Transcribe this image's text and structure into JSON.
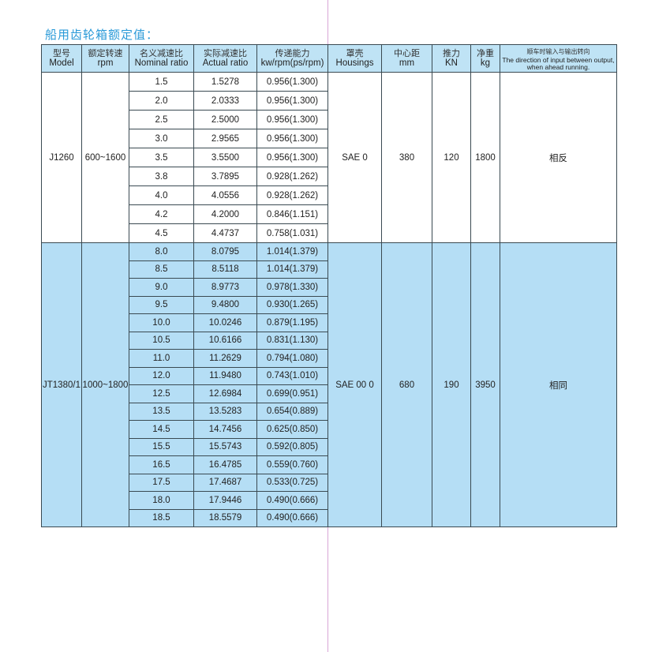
{
  "title": "船用齿轮箱额定值：",
  "colors": {
    "title": "#2a9ad8",
    "header_bg": "#bfe3f5",
    "group2_bg": "#b5def5"
  },
  "headers": [
    {
      "cn": "型号",
      "en": "Model"
    },
    {
      "cn": "额定转速",
      "en": "rpm"
    },
    {
      "cn": "名义减速比",
      "en": "Nominal ratio"
    },
    {
      "cn": "实际减速比",
      "en": "Actual ratio"
    },
    {
      "cn": "传递能力",
      "en": "kw/rpm(ps/rpm)"
    },
    {
      "cn": "罩壳",
      "en": "Housings"
    },
    {
      "cn": "中心距",
      "en": "mm"
    },
    {
      "cn": "推力",
      "en": "KN"
    },
    {
      "cn": "净重",
      "en": "kg"
    },
    {
      "cn": "顺车时输入与输出转向",
      "en": "The direction of input between output, when ahead running."
    }
  ],
  "groups": [
    {
      "model": "J1260",
      "rpm": "600~1600",
      "housing": "SAE 0",
      "center_distance": "380",
      "thrust": "120",
      "weight": "1800",
      "direction": "相反",
      "rows": [
        {
          "nominal": "1.5",
          "actual": "1.5278",
          "capacity": "0.956(1.300)"
        },
        {
          "nominal": "2.0",
          "actual": "2.0333",
          "capacity": "0.956(1.300)"
        },
        {
          "nominal": "2.5",
          "actual": "2.5000",
          "capacity": "0.956(1.300)"
        },
        {
          "nominal": "3.0",
          "actual": "2.9565",
          "capacity": "0.956(1.300)"
        },
        {
          "nominal": "3.5",
          "actual": "3.5500",
          "capacity": "0.956(1.300)"
        },
        {
          "nominal": "3.8",
          "actual": "3.7895",
          "capacity": "0.928(1.262)"
        },
        {
          "nominal": "4.0",
          "actual": "4.0556",
          "capacity": "0.928(1.262)"
        },
        {
          "nominal": "4.2",
          "actual": "4.2000",
          "capacity": "0.846(1.151)"
        },
        {
          "nominal": "4.5",
          "actual": "4.4737",
          "capacity": "0.758(1.031)"
        }
      ]
    },
    {
      "model": "JT1380/1",
      "rpm": "1000~1800",
      "housing": "SAE 00 0",
      "center_distance": "680",
      "thrust": "190",
      "weight": "3950",
      "direction": "相同",
      "rows": [
        {
          "nominal": "8.0",
          "actual": "8.0795",
          "capacity": "1.014(1.379)"
        },
        {
          "nominal": "8.5",
          "actual": "8.5118",
          "capacity": "1.014(1.379)"
        },
        {
          "nominal": "9.0",
          "actual": "8.9773",
          "capacity": "0.978(1.330)"
        },
        {
          "nominal": "9.5",
          "actual": "9.4800",
          "capacity": "0.930(1.265)"
        },
        {
          "nominal": "10.0",
          "actual": "10.0246",
          "capacity": "0.879(1.195)"
        },
        {
          "nominal": "10.5",
          "actual": "10.6166",
          "capacity": "0.831(1.130)"
        },
        {
          "nominal": "11.0",
          "actual": "11.2629",
          "capacity": "0.794(1.080)"
        },
        {
          "nominal": "12.0",
          "actual": "11.9480",
          "capacity": "0.743(1.010)"
        },
        {
          "nominal": "12.5",
          "actual": "12.6984",
          "capacity": "0.699(0.951)"
        },
        {
          "nominal": "13.5",
          "actual": "13.5283",
          "capacity": "0.654(0.889)"
        },
        {
          "nominal": "14.5",
          "actual": "14.7456",
          "capacity": "0.625(0.850)"
        },
        {
          "nominal": "15.5",
          "actual": "15.5743",
          "capacity": "0.592(0.805)"
        },
        {
          "nominal": "16.5",
          "actual": "16.4785",
          "capacity": "0.559(0.760)"
        },
        {
          "nominal": "17.5",
          "actual": "17.4687",
          "capacity": "0.533(0.725)"
        },
        {
          "nominal": "18.0",
          "actual": "17.9446",
          "capacity": "0.490(0.666)"
        },
        {
          "nominal": "18.5",
          "actual": "18.5579",
          "capacity": "0.490(0.666)"
        }
      ]
    }
  ]
}
